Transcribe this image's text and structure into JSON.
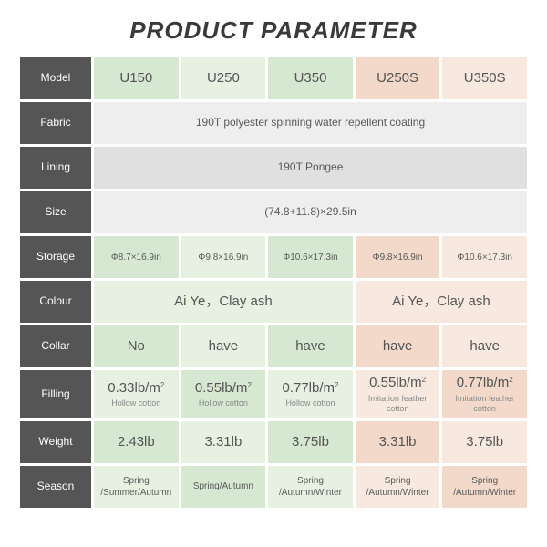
{
  "title": "PRODUCT PARAMETER",
  "colors": {
    "header_bg": "#555555",
    "header_text": "#ffffff",
    "green_dark": "#d6e8d1",
    "green_light": "#e7f1e2",
    "pink_dark": "#f2d9c9",
    "pink_light": "#f7e9df",
    "gray_dark": "#e0e0e0",
    "gray_light": "#eeeeee",
    "body_text": "#5a5a5a",
    "sub_text": "#888888"
  },
  "labels": {
    "model": "Model",
    "fabric": "Fabric",
    "lining": "Lining",
    "size": "Size",
    "storage": "Storage",
    "colour": "Colour",
    "collar": "Collar",
    "filling": "Filling",
    "weight": "Weight",
    "season": "Season"
  },
  "cols": [
    "U150",
    "U250",
    "U350",
    "U250S",
    "U350S"
  ],
  "fabric": "190T polyester spinning water repellent coating",
  "lining": "190T Pongee",
  "size": "(74.8+11.8)×29.5in",
  "storage": [
    "Φ8.7×16.9in",
    "Φ9.8×16.9in",
    "Φ10.6×17.3in",
    "Φ9.8×16.9in",
    "Φ10.6×17.3in"
  ],
  "colour_green": "Ai Ye，Clay ash",
  "colour_pink": "Ai Ye，Clay ash",
  "collar": [
    "No",
    "have",
    "have",
    "have",
    "have"
  ],
  "filling": {
    "vals": [
      "0.33lb/m",
      "0.55lb/m",
      "0.77lb/m",
      "0.55lb/m",
      "0.77lb/m"
    ],
    "sup": "2",
    "sub_green": "Hollow cotton",
    "sub_pink": "Imitation feather cotton"
  },
  "weight": [
    "2.43lb",
    "3.31lb",
    "3.75lb",
    "3.31lb",
    "3.75lb"
  ],
  "season": [
    "Spring /Summer/Autumn",
    "Spring/Autumn",
    "Spring /Autumn/Winter",
    "Spring /Autumn/Winter",
    "Spring /Autumn/Winter"
  ]
}
